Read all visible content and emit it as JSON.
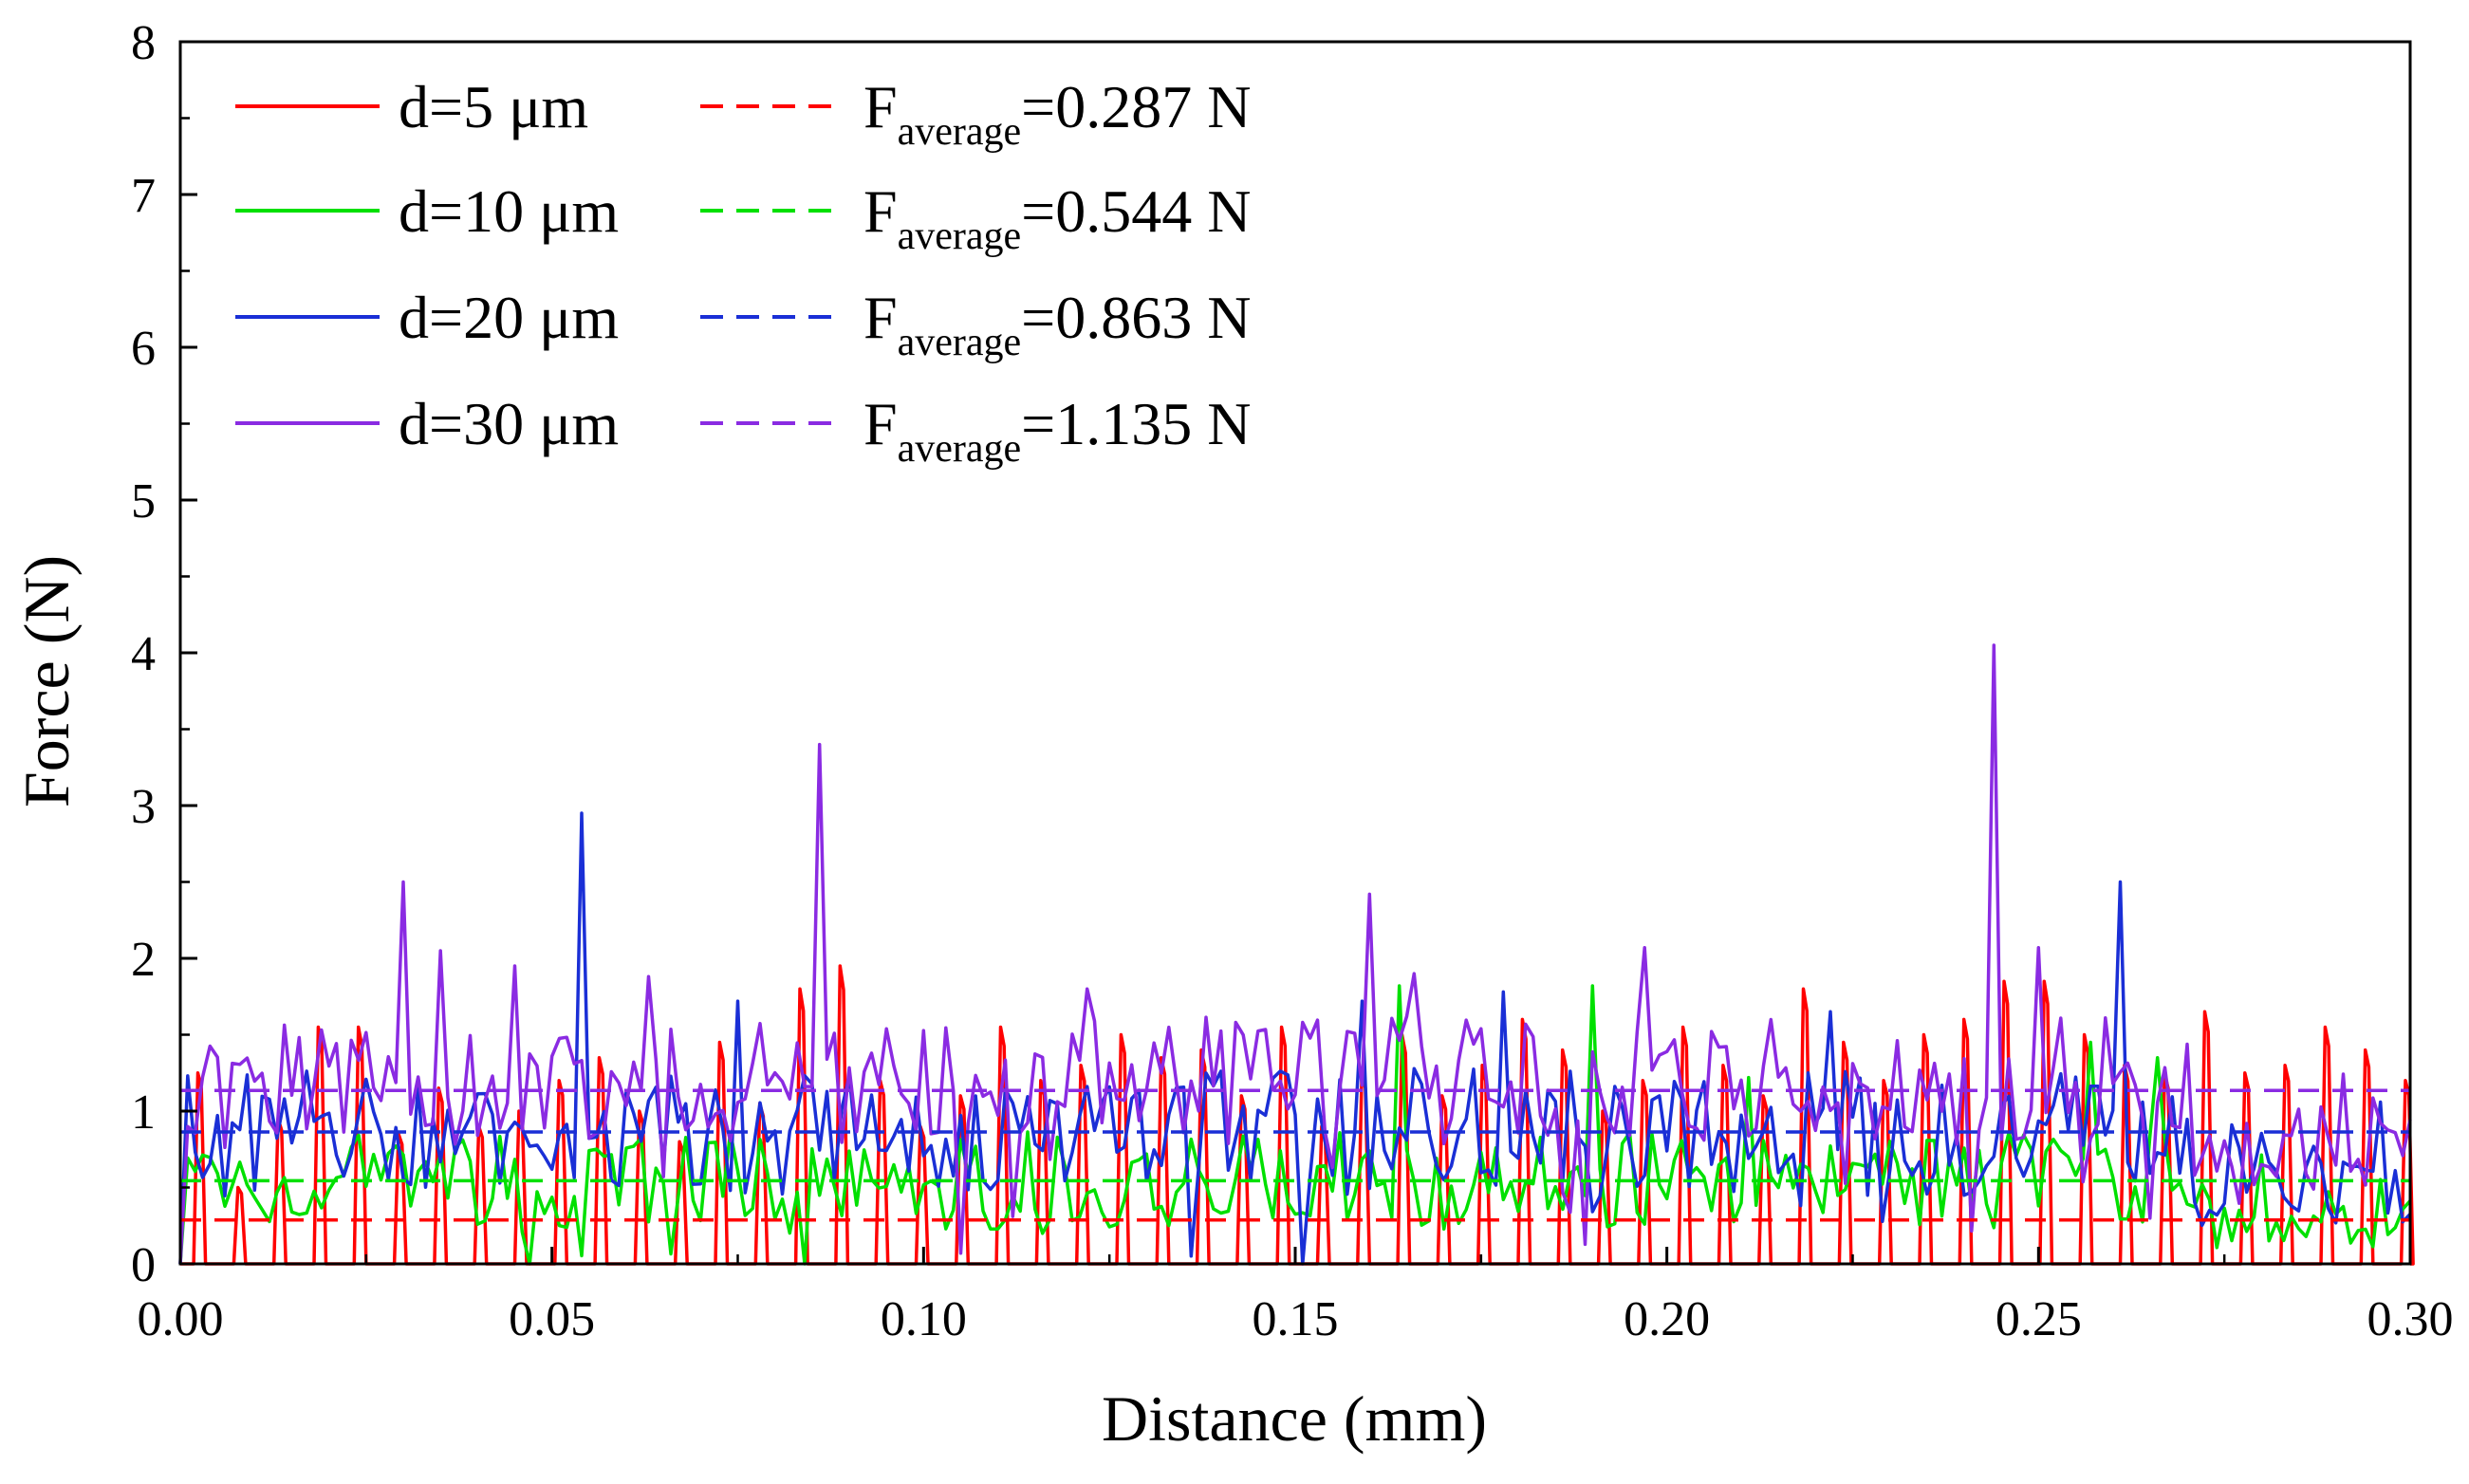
{
  "chart_data": {
    "type": "line",
    "xlabel": "Distance (mm)",
    "ylabel": "Force (N)",
    "xlim": [
      0,
      0.3
    ],
    "ylim": [
      0,
      8
    ],
    "x_ticks": [
      0.0,
      0.05,
      0.1,
      0.15,
      0.2,
      0.25,
      0.3
    ],
    "x_tick_labels": [
      "0.00",
      "0.05",
      "0.10",
      "0.15",
      "0.20",
      "0.25",
      "0.30"
    ],
    "y_ticks": [
      0,
      1,
      2,
      3,
      4,
      5,
      6,
      7,
      8
    ],
    "y_tick_labels": [
      "0",
      "1",
      "2",
      "3",
      "4",
      "5",
      "6",
      "7",
      "8"
    ],
    "legend_position": "top-left",
    "series": [
      {
        "name": "d=5 μm",
        "color": "#ff0000",
        "average": 0.287,
        "average_label_prefix": "F",
        "average_label_sub": "average",
        "average_label_value": "=0.287 N",
        "baseline": 0,
        "spike_period": 0.0054,
        "spike_offset": 0.0018,
        "spike_width": 0.0016,
        "spike_values": [
          1.25,
          0.5,
          0.95,
          1.55,
          1.55,
          0.85,
          1.15,
          0.9,
          1.0,
          1.2,
          1.35,
          1.0,
          0.8,
          1.45,
          1.05,
          1.8,
          1.95,
          1.2,
          0.9,
          1.1,
          1.55,
          1.2,
          1.3,
          1.5,
          1.35,
          1.4,
          1.1,
          1.55,
          0.9,
          1.25,
          1.5,
          1.1,
          1.3,
          1.6,
          1.4,
          1.0,
          1.2,
          1.55,
          1.3,
          1.1,
          1.8,
          1.45,
          1.2,
          1.5,
          1.6,
          1.85,
          1.85,
          1.5,
          1.3,
          1.25,
          1.65,
          1.25,
          1.3,
          1.55,
          1.4,
          1.2
        ],
        "peaks": []
      },
      {
        "name": "d=10 μm",
        "color": "#00e000",
        "average": 0.544,
        "average_label_prefix": "F",
        "average_label_sub": "average",
        "average_label_value": "=0.544 N",
        "baseline": 0.544,
        "noise_amplitude": 0.32,
        "points": 300,
        "peaks": [
          [
            0.164,
            1.82
          ],
          [
            0.19,
            1.82
          ],
          [
            0.211,
            1.22
          ],
          [
            0.257,
            1.45
          ],
          [
            0.266,
            1.35
          ]
        ]
      },
      {
        "name": "d=20 μm",
        "color": "#1a2fd6",
        "average": 0.863,
        "average_label_prefix": "F",
        "average_label_sub": "average",
        "average_label_value": "=0.863 N",
        "baseline": 0.863,
        "noise_amplitude": 0.42,
        "points": 300,
        "peaks": [
          [
            0.054,
            2.95
          ],
          [
            0.075,
            1.72
          ],
          [
            0.159,
            1.72
          ],
          [
            0.178,
            1.78
          ],
          [
            0.222,
            1.65
          ],
          [
            0.261,
            2.5
          ]
        ]
      },
      {
        "name": "d=30 μm",
        "color": "#8a2be2",
        "average": 1.135,
        "average_label_prefix": "F",
        "average_label_sub": "average",
        "average_label_value": "=1.135 N",
        "baseline": 1.2,
        "noise_amplitude": 0.42,
        "points": 300,
        "peaks": [
          [
            0.03,
            2.5
          ],
          [
            0.035,
            2.05
          ],
          [
            0.045,
            1.95
          ],
          [
            0.063,
            1.88
          ],
          [
            0.086,
            3.4
          ],
          [
            0.122,
            1.8
          ],
          [
            0.16,
            2.42
          ],
          [
            0.166,
            1.9
          ],
          [
            0.197,
            2.07
          ],
          [
            0.244,
            4.05
          ],
          [
            0.25,
            2.07
          ]
        ]
      }
    ]
  }
}
